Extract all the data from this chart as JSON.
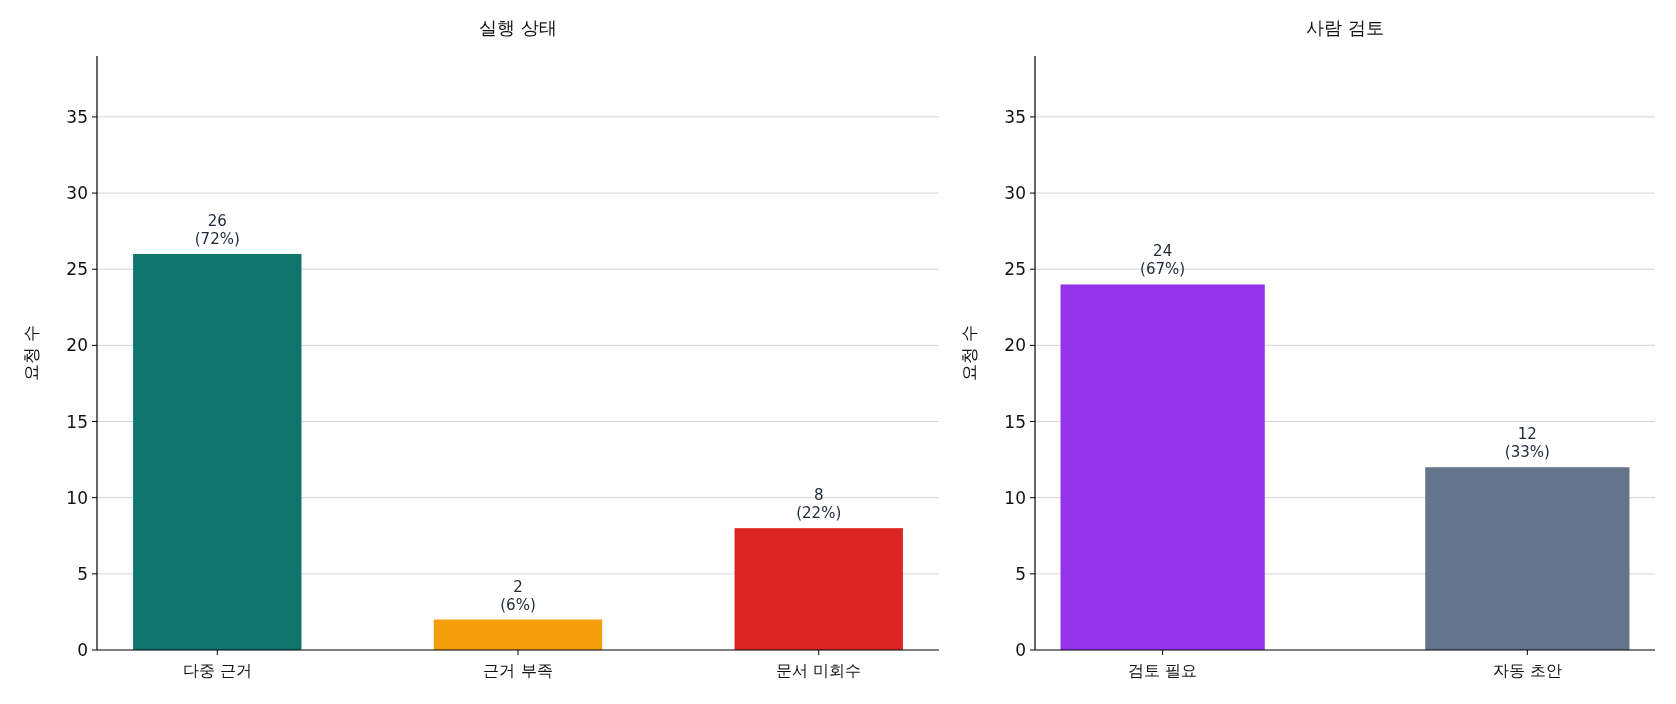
{
  "chart_data": [
    {
      "type": "bar",
      "title": "실행 상태",
      "ylabel": "요청 수",
      "categories": [
        "다중 근거",
        "근거 부족",
        "문서 미회수"
      ],
      "values": [
        26,
        2,
        8
      ],
      "colors": [
        "#0f766e",
        "#f59e0b",
        "#dc2626"
      ],
      "value_labels": [
        "26\n(72%)",
        "2\n(6%)",
        "8\n(22%)"
      ],
      "ylim": [
        0,
        39
      ],
      "yticks": [
        0,
        5,
        10,
        15,
        20,
        25,
        30,
        35
      ],
      "grid": "y"
    },
    {
      "type": "bar",
      "title": "사람 검토",
      "ylabel": "요청 수",
      "categories": [
        "검토 필요",
        "자동 초안"
      ],
      "values": [
        24,
        12
      ],
      "colors": [
        "#9333ea",
        "#64748b"
      ],
      "value_labels": [
        "24\n(67%)",
        "12\n(33%)"
      ],
      "ylim": [
        0,
        39
      ],
      "yticks": [
        0,
        5,
        10,
        15,
        20,
        25,
        30,
        35
      ],
      "grid": "y"
    }
  ]
}
